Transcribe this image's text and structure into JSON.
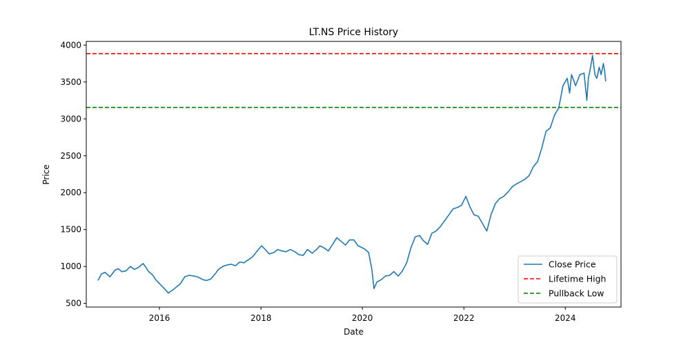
{
  "chart_data": {
    "type": "line",
    "title": "LT.NS Price History",
    "xlabel": "Date",
    "ylabel": "Price",
    "xlim": [
      "2014-07-23",
      "2025-02-05"
    ],
    "ylim": [
      450,
      4050
    ],
    "x_ticks": [
      "2016",
      "2018",
      "2020",
      "2022",
      "2024"
    ],
    "y_ticks": [
      500,
      1000,
      1500,
      2000,
      2500,
      3000,
      3500,
      4000
    ],
    "grid": false,
    "legend_position": "lower right",
    "series": [
      {
        "name": "Close Price",
        "color": "#1f77b4",
        "points": [
          [
            "2014-10-15",
            810
          ],
          [
            "2014-11-10",
            900
          ],
          [
            "2014-12-05",
            920
          ],
          [
            "2015-01-10",
            860
          ],
          [
            "2015-02-15",
            950
          ],
          [
            "2015-03-10",
            970
          ],
          [
            "2015-04-05",
            930
          ],
          [
            "2015-05-05",
            940
          ],
          [
            "2015-06-05",
            1000
          ],
          [
            "2015-07-05",
            960
          ],
          [
            "2015-08-05",
            990
          ],
          [
            "2015-09-05",
            1040
          ],
          [
            "2015-09-25",
            990
          ],
          [
            "2015-10-15",
            930
          ],
          [
            "2015-11-15",
            880
          ],
          [
            "2015-12-05",
            820
          ],
          [
            "2016-01-05",
            760
          ],
          [
            "2016-02-10",
            690
          ],
          [
            "2016-03-05",
            640
          ],
          [
            "2016-04-05",
            680
          ],
          [
            "2016-05-01",
            720
          ],
          [
            "2016-06-01",
            770
          ],
          [
            "2016-07-01",
            860
          ],
          [
            "2016-08-01",
            880
          ],
          [
            "2016-09-05",
            870
          ],
          [
            "2016-10-01",
            860
          ],
          [
            "2016-11-10",
            820
          ],
          [
            "2016-12-05",
            810
          ],
          [
            "2017-01-05",
            830
          ],
          [
            "2017-02-01",
            890
          ],
          [
            "2017-03-01",
            960
          ],
          [
            "2017-04-01",
            1000
          ],
          [
            "2017-05-01",
            1020
          ],
          [
            "2017-06-01",
            1030
          ],
          [
            "2017-07-01",
            1010
          ],
          [
            "2017-08-01",
            1060
          ],
          [
            "2017-09-01",
            1050
          ],
          [
            "2017-10-01",
            1090
          ],
          [
            "2017-11-01",
            1130
          ],
          [
            "2017-12-01",
            1200
          ],
          [
            "2018-01-05",
            1280
          ],
          [
            "2018-02-01",
            1230
          ],
          [
            "2018-03-01",
            1170
          ],
          [
            "2018-04-05",
            1190
          ],
          [
            "2018-05-01",
            1230
          ],
          [
            "2018-06-01",
            1210
          ],
          [
            "2018-07-01",
            1200
          ],
          [
            "2018-08-01",
            1230
          ],
          [
            "2018-09-01",
            1200
          ],
          [
            "2018-10-01",
            1160
          ],
          [
            "2018-11-01",
            1150
          ],
          [
            "2018-12-01",
            1230
          ],
          [
            "2019-01-05",
            1180
          ],
          [
            "2019-02-05",
            1230
          ],
          [
            "2019-03-01",
            1280
          ],
          [
            "2019-04-01",
            1250
          ],
          [
            "2019-05-01",
            1210
          ],
          [
            "2019-06-01",
            1300
          ],
          [
            "2019-07-01",
            1390
          ],
          [
            "2019-08-01",
            1340
          ],
          [
            "2019-09-01",
            1290
          ],
          [
            "2019-10-01",
            1360
          ],
          [
            "2019-11-01",
            1360
          ],
          [
            "2019-12-01",
            1280
          ],
          [
            "2020-01-15",
            1240
          ],
          [
            "2020-02-15",
            1190
          ],
          [
            "2020-03-10",
            950
          ],
          [
            "2020-03-24",
            700
          ],
          [
            "2020-04-15",
            790
          ],
          [
            "2020-05-15",
            820
          ],
          [
            "2020-06-15",
            870
          ],
          [
            "2020-07-15",
            880
          ],
          [
            "2020-08-15",
            930
          ],
          [
            "2020-09-15",
            870
          ],
          [
            "2020-10-15",
            940
          ],
          [
            "2020-11-15",
            1050
          ],
          [
            "2020-12-15",
            1250
          ],
          [
            "2021-01-15",
            1400
          ],
          [
            "2021-02-15",
            1420
          ],
          [
            "2021-03-15",
            1350
          ],
          [
            "2021-04-15",
            1300
          ],
          [
            "2021-05-15",
            1450
          ],
          [
            "2021-06-15",
            1480
          ],
          [
            "2021-07-15",
            1540
          ],
          [
            "2021-08-15",
            1620
          ],
          [
            "2021-09-15",
            1700
          ],
          [
            "2021-10-15",
            1780
          ],
          [
            "2021-11-15",
            1800
          ],
          [
            "2021-12-15",
            1830
          ],
          [
            "2022-01-15",
            1950
          ],
          [
            "2022-02-15",
            1800
          ],
          [
            "2022-03-15",
            1700
          ],
          [
            "2022-04-15",
            1680
          ],
          [
            "2022-05-15",
            1580
          ],
          [
            "2022-06-15",
            1480
          ],
          [
            "2022-07-15",
            1700
          ],
          [
            "2022-08-15",
            1850
          ],
          [
            "2022-09-15",
            1920
          ],
          [
            "2022-10-15",
            1950
          ],
          [
            "2022-11-15",
            2010
          ],
          [
            "2022-12-15",
            2080
          ],
          [
            "2023-01-15",
            2120
          ],
          [
            "2023-02-15",
            2150
          ],
          [
            "2023-03-15",
            2180
          ],
          [
            "2023-04-15",
            2230
          ],
          [
            "2023-05-15",
            2350
          ],
          [
            "2023-06-15",
            2420
          ],
          [
            "2023-07-15",
            2600
          ],
          [
            "2023-08-15",
            2830
          ],
          [
            "2023-09-15",
            2880
          ],
          [
            "2023-10-15",
            3050
          ],
          [
            "2023-11-15",
            3150
          ],
          [
            "2023-12-15",
            3450
          ],
          [
            "2024-01-15",
            3550
          ],
          [
            "2024-02-01",
            3350
          ],
          [
            "2024-02-15",
            3600
          ],
          [
            "2024-03-15",
            3450
          ],
          [
            "2024-04-15",
            3600
          ],
          [
            "2024-05-15",
            3620
          ],
          [
            "2024-06-04",
            3250
          ],
          [
            "2024-06-15",
            3550
          ],
          [
            "2024-07-01",
            3700
          ],
          [
            "2024-07-15",
            3860
          ],
          [
            "2024-08-01",
            3600
          ],
          [
            "2024-08-15",
            3550
          ],
          [
            "2024-09-01",
            3700
          ],
          [
            "2024-09-15",
            3600
          ],
          [
            "2024-10-01",
            3750
          ],
          [
            "2024-10-10",
            3650
          ],
          [
            "2024-10-18",
            3510
          ]
        ]
      },
      {
        "name": "Lifetime High",
        "color": "#ff0000",
        "style": "dashed",
        "value": 3885
      },
      {
        "name": "Pullback Low",
        "color": "#008000",
        "style": "dashed",
        "value": 3155
      }
    ]
  }
}
